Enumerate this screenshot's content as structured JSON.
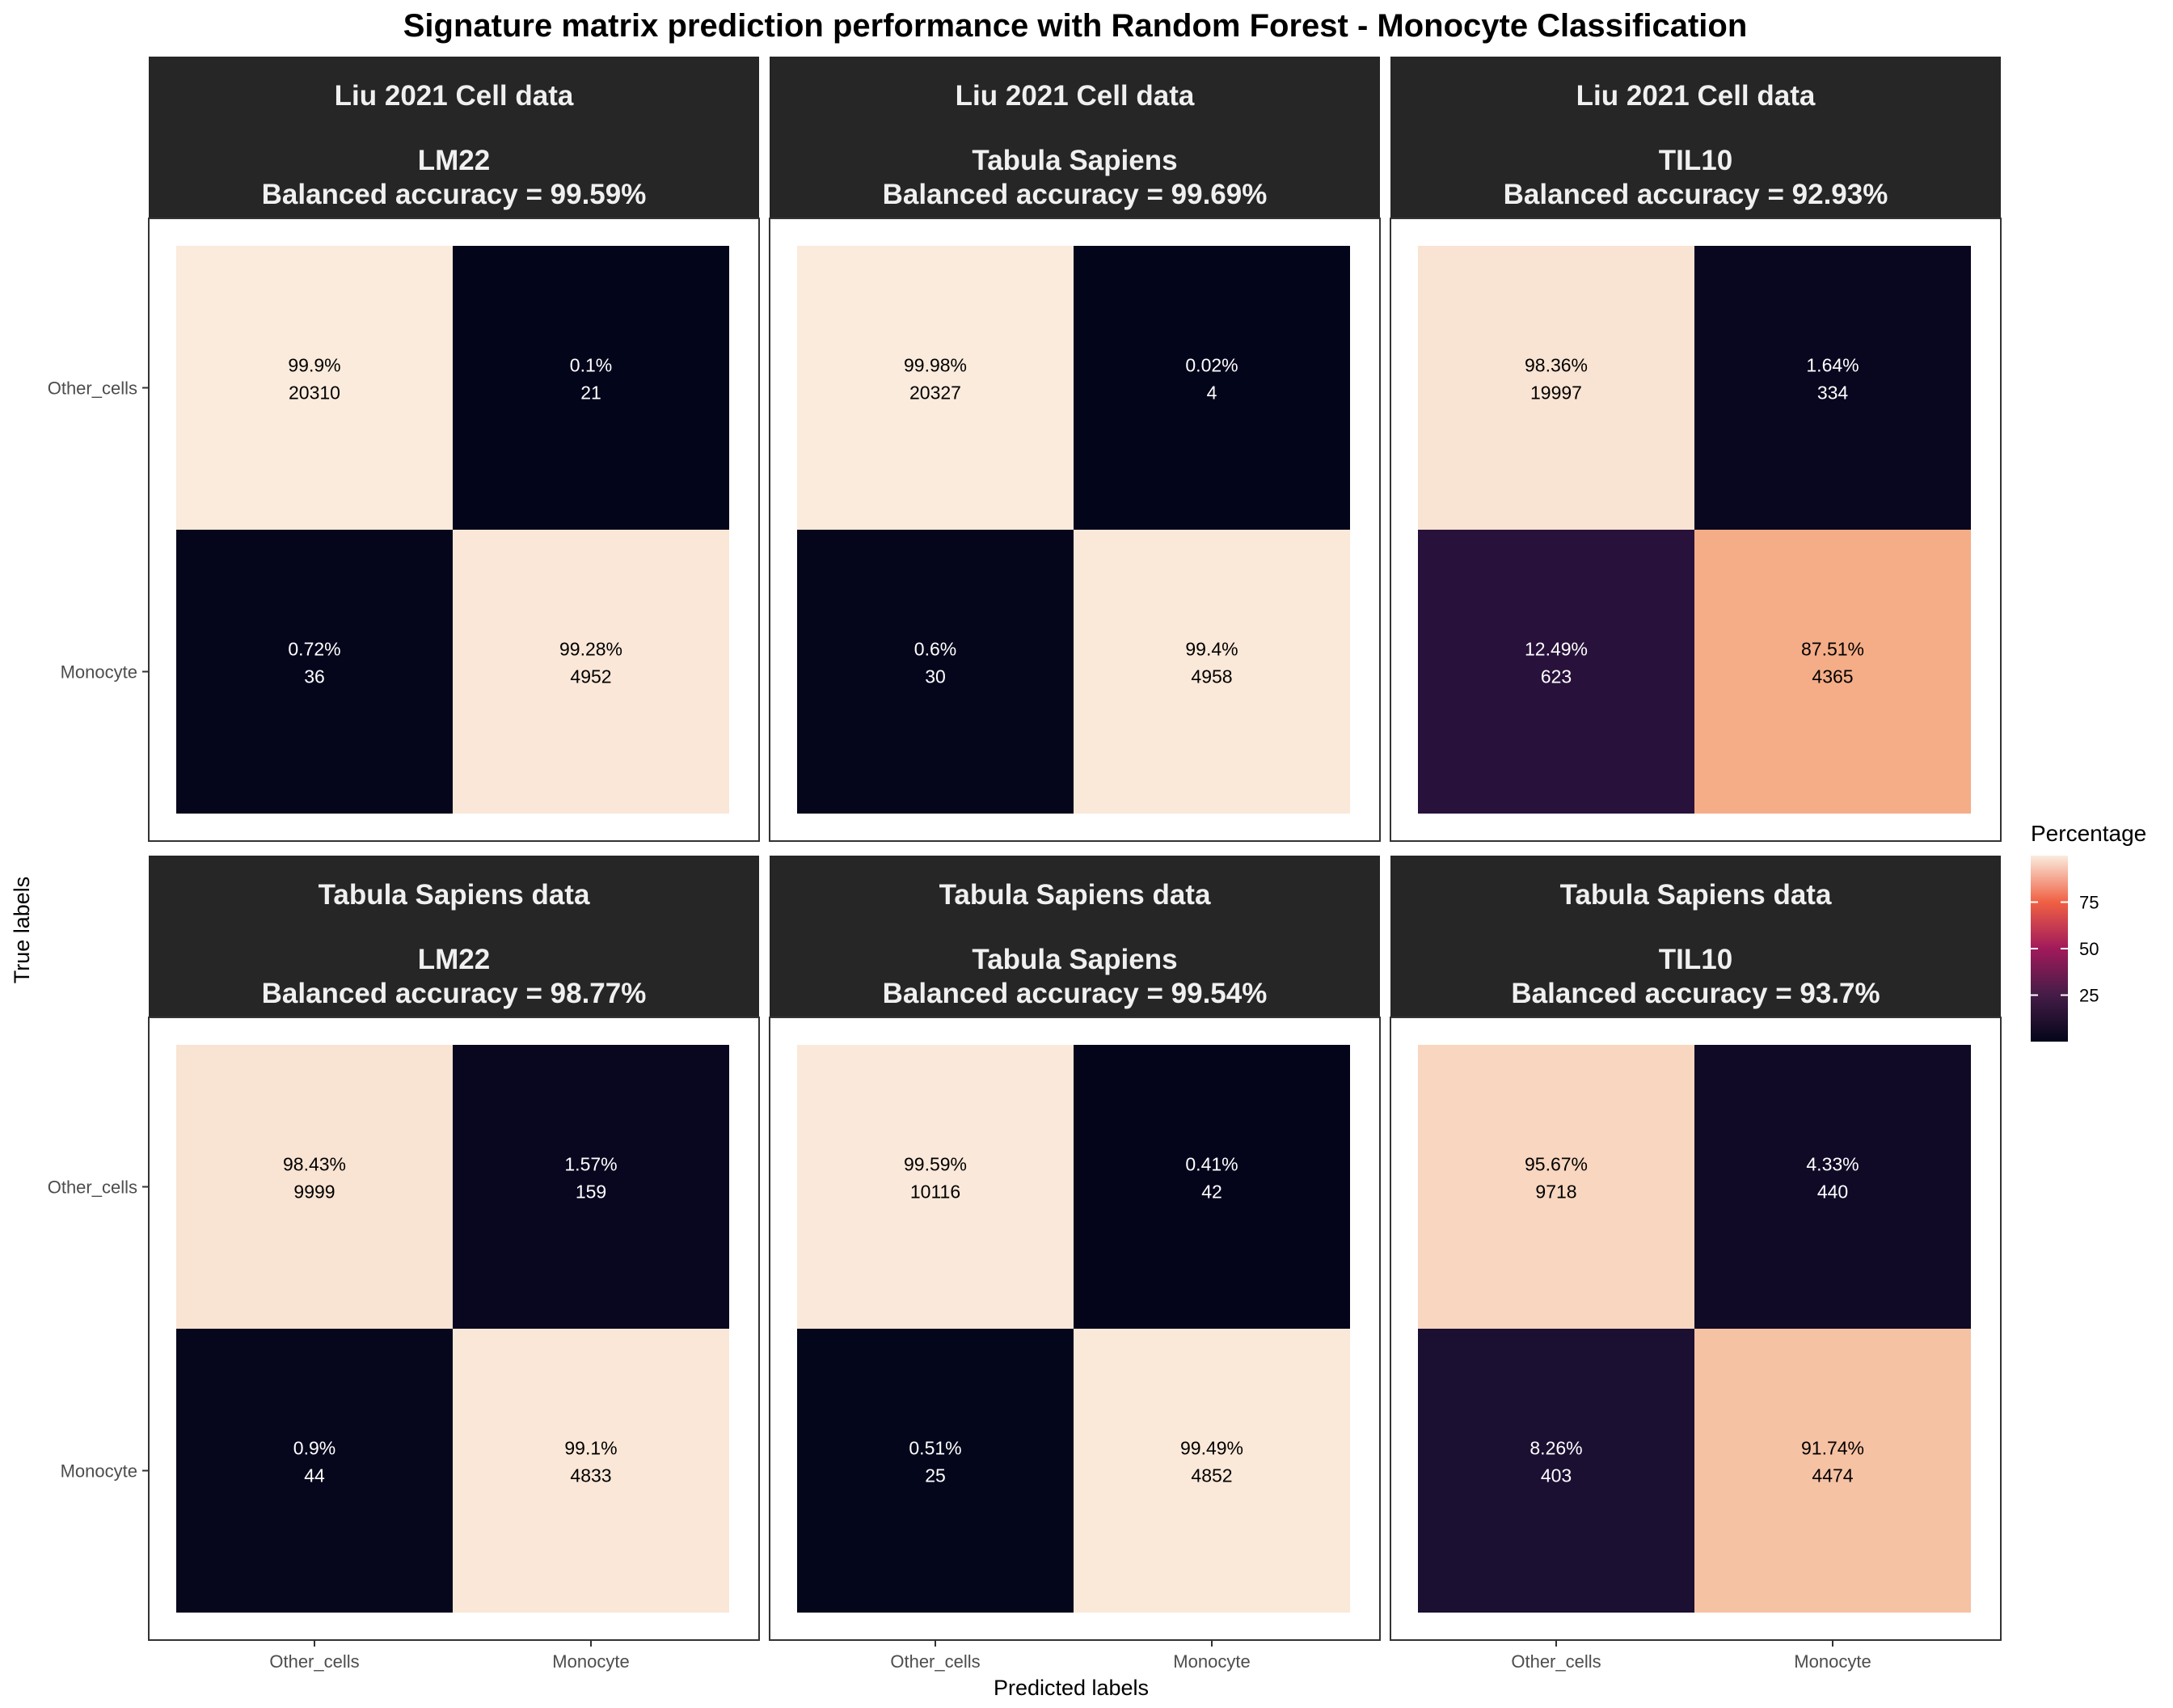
{
  "title": "Signature matrix prediction performance with Random Forest - Monocyte Classification",
  "xlabel": "Predicted labels",
  "ylabel": "True labels",
  "legend": {
    "title": "Percentage",
    "ticks": [
      "25",
      "50",
      "75"
    ],
    "tick_values": [
      25,
      50,
      75
    ],
    "range": [
      0,
      100
    ]
  },
  "colors": {
    "panel_strip": "#262626",
    "strip_text": "#f0f0f0",
    "low": "#03051a",
    "high": "#faebdd"
  },
  "chart_data": {
    "type": "heatmap",
    "x_categories": [
      "Other_cells",
      "Monocyte"
    ],
    "y_categories": [
      "Other_cells",
      "Monocyte"
    ],
    "panels": [
      {
        "strip_line1": "Liu 2021 Cell data",
        "strip_line2": "LM22",
        "strip_line3": "Balanced accuracy = 99.59%",
        "cells": [
          {
            "true": "Other_cells",
            "pred": "Other_cells",
            "pct": 99.9,
            "pct_label": "99.9%",
            "count": "20310"
          },
          {
            "true": "Other_cells",
            "pred": "Monocyte",
            "pct": 0.1,
            "pct_label": "0.1%",
            "count": "21"
          },
          {
            "true": "Monocyte",
            "pred": "Other_cells",
            "pct": 0.72,
            "pct_label": "0.72%",
            "count": "36"
          },
          {
            "true": "Monocyte",
            "pred": "Monocyte",
            "pct": 99.28,
            "pct_label": "99.28%",
            "count": "4952"
          }
        ]
      },
      {
        "strip_line1": "Liu 2021 Cell data",
        "strip_line2": "Tabula Sapiens",
        "strip_line3": "Balanced accuracy = 99.69%",
        "cells": [
          {
            "true": "Other_cells",
            "pred": "Other_cells",
            "pct": 99.98,
            "pct_label": "99.98%",
            "count": "20327"
          },
          {
            "true": "Other_cells",
            "pred": "Monocyte",
            "pct": 0.02,
            "pct_label": "0.02%",
            "count": "4"
          },
          {
            "true": "Monocyte",
            "pred": "Other_cells",
            "pct": 0.6,
            "pct_label": "0.6%",
            "count": "30"
          },
          {
            "true": "Monocyte",
            "pred": "Monocyte",
            "pct": 99.4,
            "pct_label": "99.4%",
            "count": "4958"
          }
        ]
      },
      {
        "strip_line1": "Liu 2021 Cell data",
        "strip_line2": "TIL10",
        "strip_line3": "Balanced accuracy = 92.93%",
        "cells": [
          {
            "true": "Other_cells",
            "pred": "Other_cells",
            "pct": 98.36,
            "pct_label": "98.36%",
            "count": "19997"
          },
          {
            "true": "Other_cells",
            "pred": "Monocyte",
            "pct": 1.64,
            "pct_label": "1.64%",
            "count": "334"
          },
          {
            "true": "Monocyte",
            "pred": "Other_cells",
            "pct": 12.49,
            "pct_label": "12.49%",
            "count": "623"
          },
          {
            "true": "Monocyte",
            "pred": "Monocyte",
            "pct": 87.51,
            "pct_label": "87.51%",
            "count": "4365"
          }
        ]
      },
      {
        "strip_line1": "Tabula Sapiens data",
        "strip_line2": "LM22",
        "strip_line3": "Balanced accuracy = 98.77%",
        "cells": [
          {
            "true": "Other_cells",
            "pred": "Other_cells",
            "pct": 98.43,
            "pct_label": "98.43%",
            "count": "9999"
          },
          {
            "true": "Other_cells",
            "pred": "Monocyte",
            "pct": 1.57,
            "pct_label": "1.57%",
            "count": "159"
          },
          {
            "true": "Monocyte",
            "pred": "Other_cells",
            "pct": 0.9,
            "pct_label": "0.9%",
            "count": "44"
          },
          {
            "true": "Monocyte",
            "pred": "Monocyte",
            "pct": 99.1,
            "pct_label": "99.1%",
            "count": "4833"
          }
        ]
      },
      {
        "strip_line1": "Tabula Sapiens data",
        "strip_line2": "Tabula Sapiens",
        "strip_line3": "Balanced accuracy = 99.54%",
        "cells": [
          {
            "true": "Other_cells",
            "pred": "Other_cells",
            "pct": 99.59,
            "pct_label": "99.59%",
            "count": "10116"
          },
          {
            "true": "Other_cells",
            "pred": "Monocyte",
            "pct": 0.41,
            "pct_label": "0.41%",
            "count": "42"
          },
          {
            "true": "Monocyte",
            "pred": "Other_cells",
            "pct": 0.51,
            "pct_label": "0.51%",
            "count": "25"
          },
          {
            "true": "Monocyte",
            "pred": "Monocyte",
            "pct": 99.49,
            "pct_label": "99.49%",
            "count": "4852"
          }
        ]
      },
      {
        "strip_line1": "Tabula Sapiens data",
        "strip_line2": "TIL10",
        "strip_line3": "Balanced accuracy = 93.7%",
        "cells": [
          {
            "true": "Other_cells",
            "pred": "Other_cells",
            "pct": 95.67,
            "pct_label": "95.67%",
            "count": "9718"
          },
          {
            "true": "Other_cells",
            "pred": "Monocyte",
            "pct": 4.33,
            "pct_label": "4.33%",
            "count": "440"
          },
          {
            "true": "Monocyte",
            "pred": "Other_cells",
            "pct": 8.26,
            "pct_label": "8.26%",
            "count": "403"
          },
          {
            "true": "Monocyte",
            "pred": "Monocyte",
            "pct": 91.74,
            "pct_label": "91.74%",
            "count": "4474"
          }
        ]
      }
    ]
  }
}
